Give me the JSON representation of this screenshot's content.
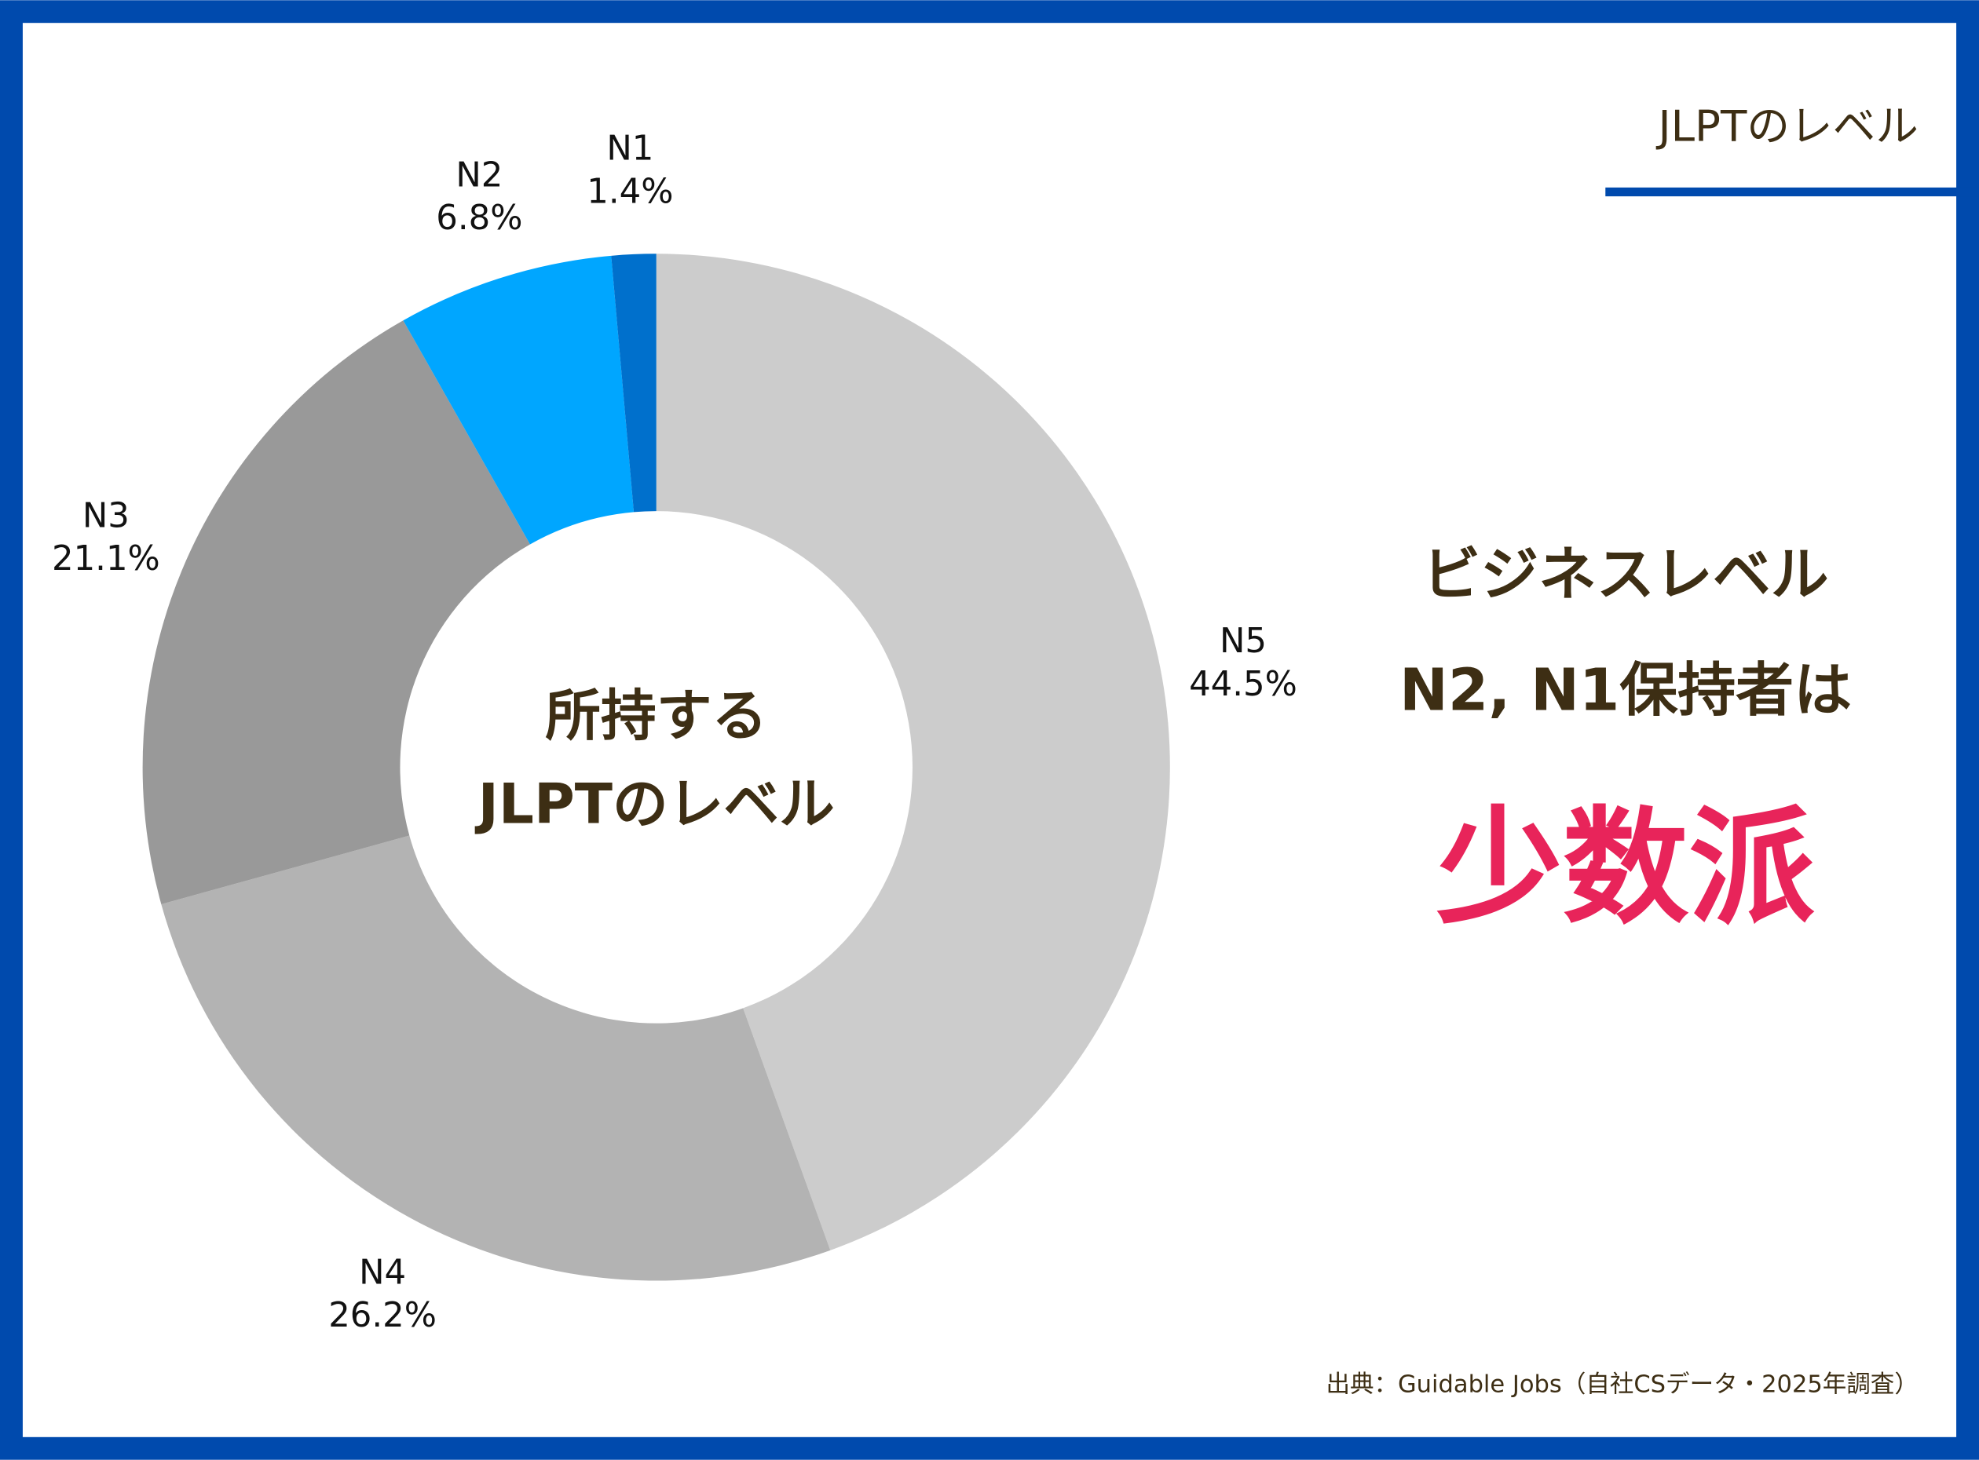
{
  "chart_data": {
    "type": "pie",
    "title": "JLPTのレベル",
    "center_text": [
      "所持する",
      "JLPTのレベル"
    ],
    "categories": [
      "N5",
      "N4",
      "N3",
      "N2",
      "N1"
    ],
    "values": [
      44.5,
      26.2,
      21.1,
      6.8,
      1.4
    ],
    "value_labels": [
      "44.5%",
      "26.2%",
      "21.1%",
      "6.8%",
      "1.4%"
    ],
    "colors": [
      "#cccccc",
      "#b3b3b3",
      "#999999",
      "#00a6ff",
      "#0070cc"
    ],
    "annotations": [
      "ビジネスレベル",
      "N2, N1保持者は",
      "少数派"
    ],
    "source": "出典：Guidable Jobs（自社CSデータ・2025年調査）"
  }
}
